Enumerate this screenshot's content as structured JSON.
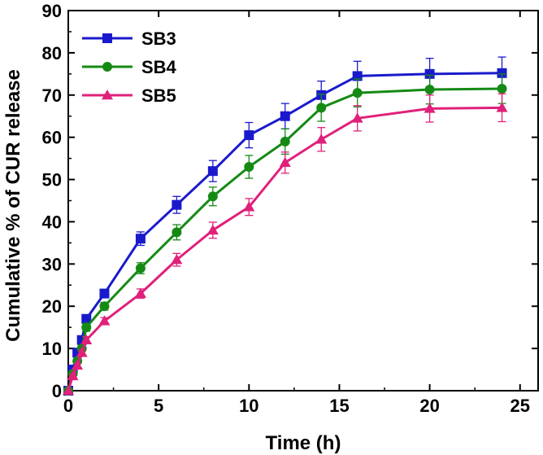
{
  "chart_data": {
    "type": "line",
    "title": "",
    "xlabel": "Time (h)",
    "ylabel": "Cumulative % of CUR release",
    "xlim": [
      0,
      26
    ],
    "ylim": [
      0,
      90
    ],
    "xticks": [
      0,
      5,
      10,
      15,
      20,
      25
    ],
    "yticks": [
      0,
      10,
      20,
      30,
      40,
      50,
      60,
      70,
      80,
      90
    ],
    "xtick_labels": [
      "0",
      "5",
      "10",
      "15",
      "20",
      "25"
    ],
    "ytick_labels": [
      "0",
      "10",
      "20",
      "30",
      "40",
      "50",
      "60",
      "70",
      "80",
      "90"
    ],
    "grid": false,
    "legend_position": "top-left",
    "series": [
      {
        "name": "SB3",
        "color": "#1a1acc",
        "marker": "square",
        "x": [
          0,
          0.25,
          0.5,
          0.75,
          1,
          2,
          4,
          6,
          8,
          10,
          12,
          14,
          16,
          20,
          24
        ],
        "values": [
          0,
          5,
          9,
          12,
          17,
          23,
          36,
          44,
          52,
          60.5,
          65,
          70,
          74.5,
          75,
          75.2
        ],
        "errors": [
          0,
          0.5,
          0.7,
          0.8,
          1,
          1,
          1.6,
          2,
          2.5,
          3,
          3,
          3.3,
          3.5,
          3.7,
          3.8
        ]
      },
      {
        "name": "SB4",
        "color": "#148a14",
        "marker": "circle",
        "x": [
          0,
          0.25,
          0.5,
          0.75,
          1,
          2,
          4,
          6,
          8,
          10,
          12,
          14,
          16,
          20,
          24
        ],
        "values": [
          0,
          4,
          7,
          10,
          15,
          20,
          29,
          37.5,
          46,
          53,
          59,
          67,
          70.5,
          71.3,
          71.5
        ],
        "errors": [
          0,
          0.4,
          0.6,
          0.7,
          0.9,
          0.9,
          1.3,
          1.8,
          2.2,
          2.7,
          3,
          3.2,
          3.3,
          3.4,
          3.5
        ]
      },
      {
        "name": "SB5",
        "color": "#e0207a",
        "marker": "triangle",
        "x": [
          0,
          0.25,
          0.5,
          0.75,
          1,
          2,
          4,
          6,
          8,
          10,
          12,
          14,
          16,
          20,
          24
        ],
        "values": [
          0,
          3.5,
          6,
          9,
          12,
          16.5,
          23,
          31,
          38,
          43.5,
          54,
          59.5,
          64.5,
          66.8,
          67
        ],
        "errors": [
          0,
          0.4,
          0.5,
          0.6,
          0.8,
          0.8,
          1.1,
          1.5,
          1.9,
          2,
          2.5,
          2.8,
          3,
          3.2,
          3.3
        ]
      }
    ]
  }
}
